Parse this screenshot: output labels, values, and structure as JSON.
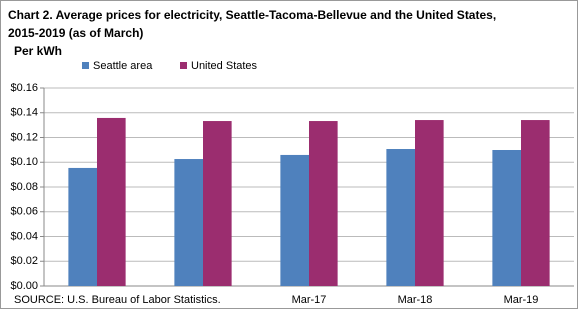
{
  "chart_data": {
    "type": "bar",
    "title": "Chart 2. Average prices for electricity, Seattle-Tacoma-Bellevue and the United States,",
    "subtitle": "2015-2019  (as of March)",
    "y_label": "Per kWh",
    "source": "SOURCE: U.S. Bureau of Labor Statistics.",
    "categories": [
      null,
      null,
      "Mar-17",
      "Mar-18",
      "Mar-19"
    ],
    "series": [
      {
        "name": "Seattle area",
        "color": "#4f81bd",
        "values": [
          0.0954,
          0.1026,
          0.1059,
          0.1107,
          0.1099
        ]
      },
      {
        "name": "United States",
        "color": "#9b2d6f",
        "values": [
          0.1358,
          0.1333,
          0.1333,
          0.1341,
          0.1341
        ]
      }
    ],
    "ylim": [
      0,
      0.16
    ],
    "yticks": [
      {
        "value": 0,
        "label": "$0.00"
      },
      {
        "value": 0.02,
        "label": "$0.02"
      },
      {
        "value": 0.04,
        "label": "$0.04"
      },
      {
        "value": 0.06,
        "label": "$0.06"
      },
      {
        "value": 0.08,
        "label": "$0.08"
      },
      {
        "value": 0.1,
        "label": "$0.10"
      },
      {
        "value": 0.12,
        "label": "$0.12"
      },
      {
        "value": 0.14,
        "label": "$0.14"
      },
      {
        "value": 0.16,
        "label": "$0.16"
      }
    ],
    "grid": true
  }
}
